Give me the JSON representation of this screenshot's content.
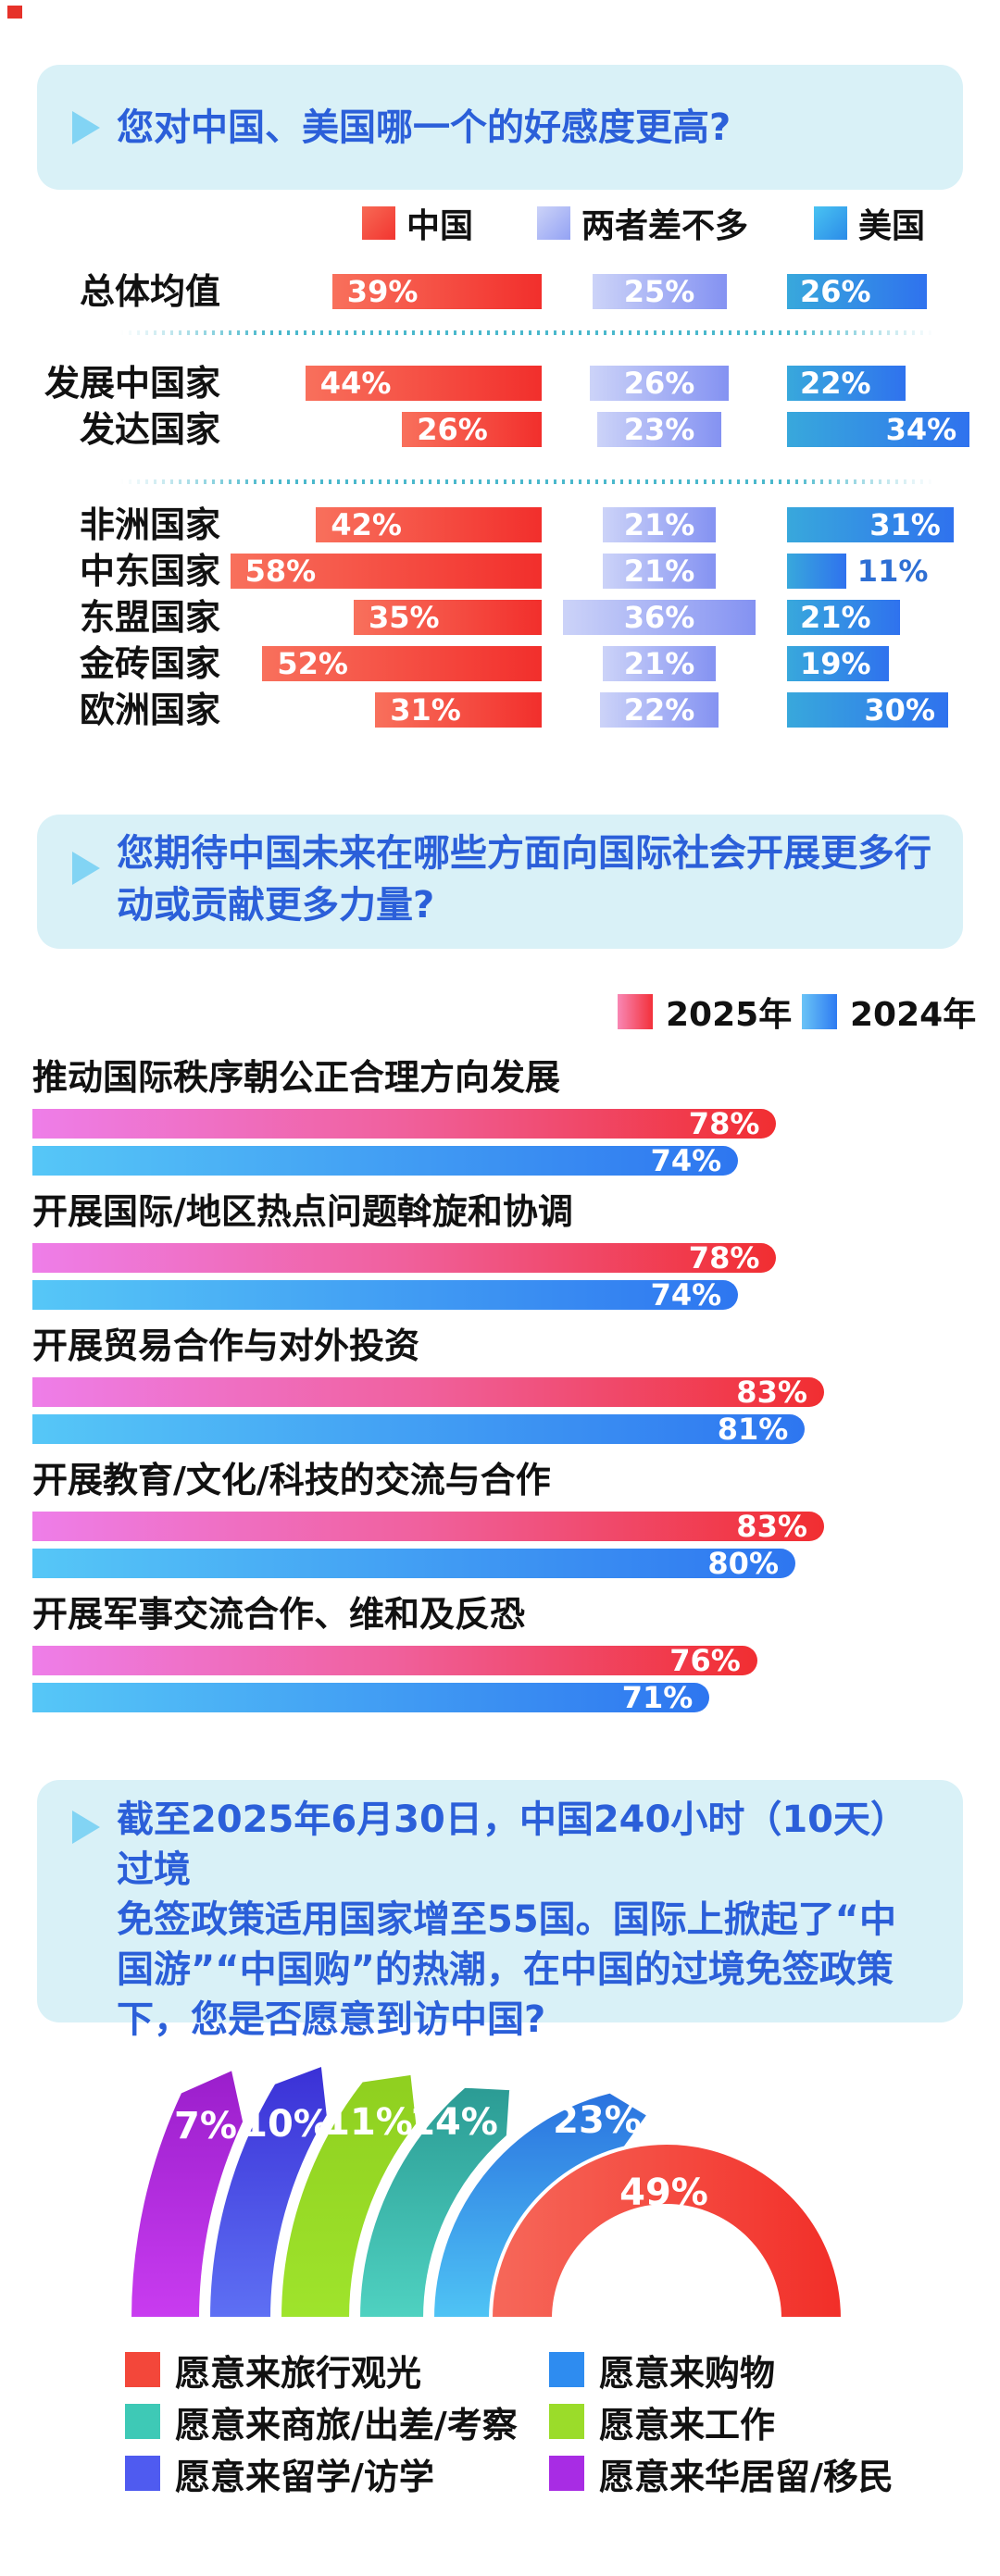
{
  "corner_mark_color": "#e6322a",
  "accent_blue": "#2b5fd9",
  "box_bg": "#d9f1f7",
  "chart_data": [
    {
      "type": "bar",
      "title": "您对中国、美国哪一个的好感度更高?",
      "legend": [
        "中国",
        "两者差不多",
        "美国"
      ],
      "categories": [
        "总体均值",
        "发展中国家",
        "发达国家",
        "非洲国家",
        "中东国家",
        "东盟国家",
        "金砖国家",
        "欧洲国家"
      ],
      "series": [
        {
          "name": "中国",
          "values": [
            39,
            44,
            26,
            42,
            58,
            35,
            52,
            31
          ],
          "color": "#f23530"
        },
        {
          "name": "两者差不多",
          "values": [
            25,
            26,
            23,
            21,
            21,
            36,
            21,
            22
          ],
          "color": "#93a2f4"
        },
        {
          "name": "美国",
          "values": [
            26,
            22,
            34,
            31,
            11,
            21,
            19,
            30
          ],
          "color": "#2f72ee"
        }
      ],
      "group_separators_after": [
        "总体均值",
        "发达国家"
      ],
      "unit": "%"
    },
    {
      "type": "bar",
      "title": "您期待中国未来在哪些方面向国际社会开展更多行动或贡献更多力量?",
      "title_lines": [
        "您期待中国未来在哪些方面向国际社会开展更多行",
        "动或贡献更多力量?"
      ],
      "legend": [
        "2025年",
        "2024年"
      ],
      "categories": [
        "推动国际秩序朝公正合理方向发展",
        "开展国际/地区热点问题斡旋和协调",
        "开展贸易合作与对外投资",
        "开展教育/文化/科技的交流与合作",
        "开展军事交流合作、维和及反恐"
      ],
      "series": [
        {
          "name": "2025年",
          "values": [
            78,
            78,
            83,
            83,
            76
          ],
          "color": "#f3303a"
        },
        {
          "name": "2024年",
          "values": [
            74,
            74,
            81,
            80,
            71
          ],
          "color": "#2e7bf2"
        }
      ],
      "unit": "%"
    },
    {
      "type": "pie",
      "subtype": "half-donut-fan",
      "title": "截至2025年6月30日，中国240小时（10天）过境免签政策适用国家增至55国。国际上掀起了“中国游”“中国购”的热潮，在中国的过境免签政策下，您是否愿意到访中国?",
      "title_lines": [
        "截至2025年6月30日，中国240小时（10天）过境",
        "免签政策适用国家增至55国。国际上掀起了“中",
        "国游”“中国购”的热潮，在中国的过境免签政策",
        "下，您是否愿意到访中国?"
      ],
      "slices": [
        {
          "label": "愿意来旅行观光",
          "value": 49,
          "color": "#f3473a"
        },
        {
          "label": "愿意来购物",
          "value": 23,
          "color": "#2e8cf0"
        },
        {
          "label": "愿意来商旅/出差/考察",
          "value": 14,
          "color": "#3ec9b6"
        },
        {
          "label": "愿意来工作",
          "value": 11,
          "color": "#9bdc2a"
        },
        {
          "label": "愿意来留学/访学",
          "value": 10,
          "color": "#4f5bf0"
        },
        {
          "label": "愿意来华居留/移民",
          "value": 7,
          "color": "#a82ce4"
        }
      ],
      "unit": "%"
    }
  ]
}
